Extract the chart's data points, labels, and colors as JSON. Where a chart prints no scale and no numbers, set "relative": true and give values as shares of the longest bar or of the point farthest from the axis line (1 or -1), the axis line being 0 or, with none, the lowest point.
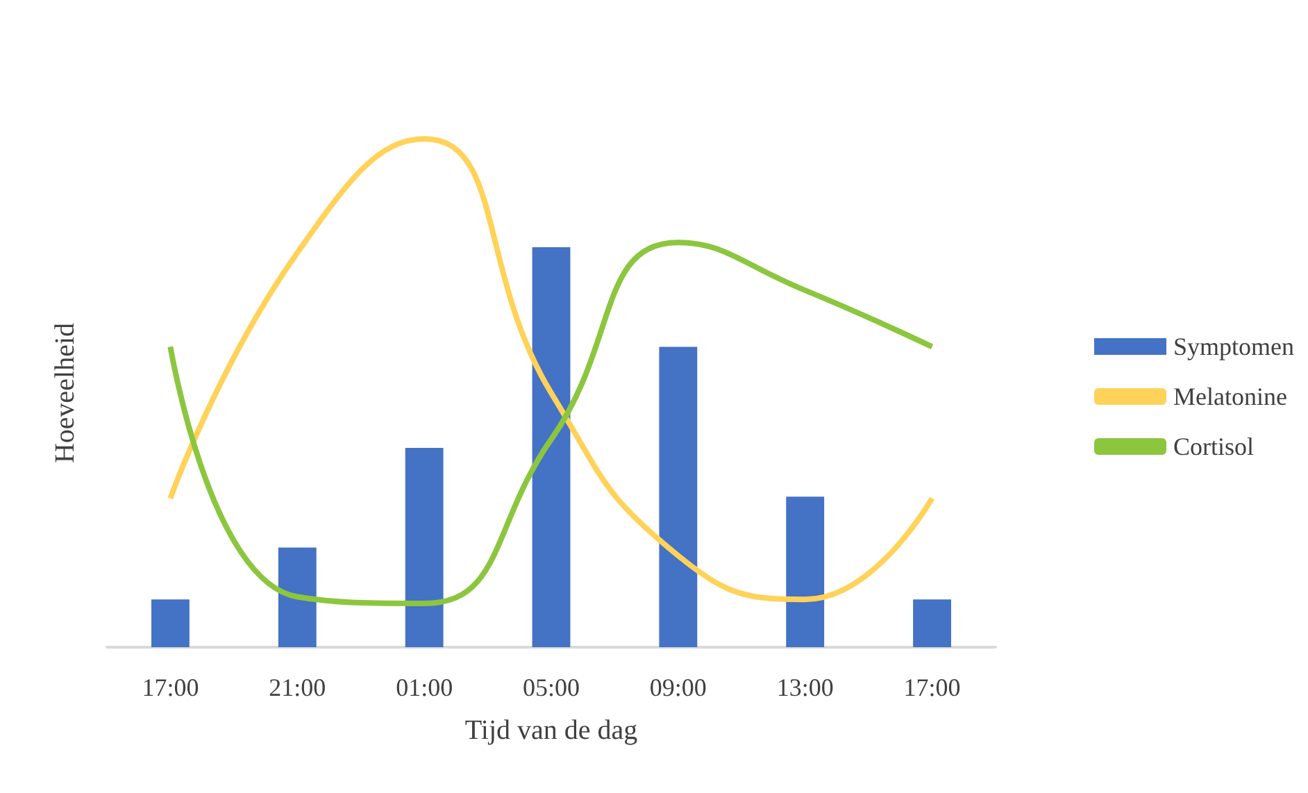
{
  "chart_data": {
    "type": "bar",
    "xlabel": "Tijd van de dag",
    "ylabel": "Hoeveelheid",
    "categories": [
      "17:00",
      "21:00",
      "01:00",
      "05:00",
      "09:00",
      "13:00",
      "17:00"
    ],
    "relative": true,
    "legend": "right",
    "grid": false,
    "marker": "none",
    "series": [
      {
        "name": "Symptomen",
        "color": "#4472c4",
        "values": [
          0.094,
          0.196,
          0.392,
          0.787,
          0.591,
          0.296,
          0.094
        ]
      },
      {
        "name": "Melatonine",
        "type": "line",
        "color": "#ffd25a",
        "values": [
          0.293,
          0.776,
          1,
          0.5,
          0.18,
          0.094,
          0.293
        ]
      },
      {
        "name": "Cortisol",
        "type": "line",
        "color": "#8cc63f",
        "values": [
          0.591,
          0.099,
          0.086,
          0.409,
          0.796,
          0.702,
          0.591
        ]
      }
    ]
  }
}
